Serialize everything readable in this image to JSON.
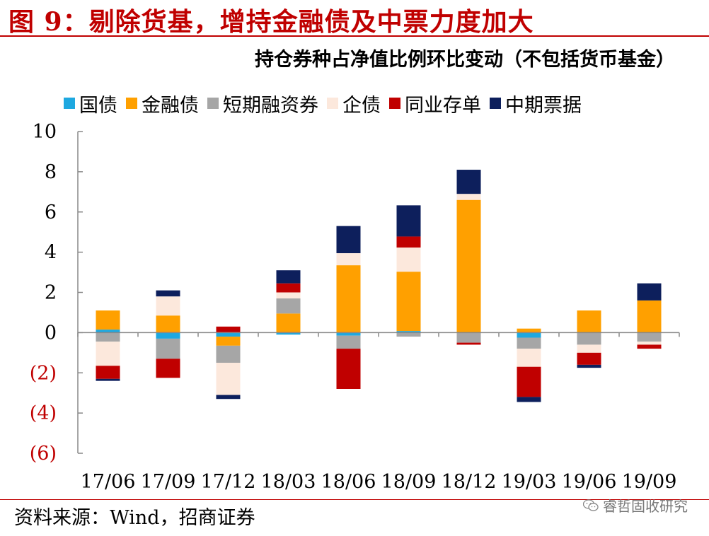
{
  "figure_title": "图 9：剔除货基，增持金融债及中票力度加大",
  "source": "资料来源：Wind，招商证券",
  "watermark": "睿哲固收研究",
  "watermark_icon": "wechat-icon",
  "chart_data": {
    "type": "bar",
    "stacked": true,
    "title": "持仓券种占净值比例环比变动（不包括货币基金）",
    "xlabel": "",
    "ylabel": "",
    "ylim": [
      -6,
      10
    ],
    "yticks": [
      "10",
      "8",
      "6",
      "4",
      "2",
      "0",
      "(2)",
      "(4)",
      "(6)"
    ],
    "ytick_values": [
      10,
      8,
      6,
      4,
      2,
      0,
      -2,
      -4,
      -6
    ],
    "negative_tick_color": "#c00000",
    "grid": false,
    "legend_position": "top",
    "categories": [
      "17/06",
      "17/09",
      "17/12",
      "18/03",
      "18/06",
      "18/09",
      "18/12",
      "19/03",
      "19/06",
      "19/09"
    ],
    "series": [
      {
        "name": "国债",
        "color": "#1ea8e0",
        "values": [
          0.15,
          -0.3,
          -0.2,
          -0.1,
          -0.15,
          0.08,
          0.0,
          -0.25,
          0.0,
          0.0
        ]
      },
      {
        "name": "金融债",
        "color": "#ffa000",
        "values": [
          0.95,
          0.85,
          -0.45,
          0.95,
          3.35,
          2.95,
          6.6,
          0.2,
          1.1,
          1.6
        ]
      },
      {
        "name": "短期融资券",
        "color": "#a6a6a6",
        "values": [
          -0.45,
          -1.0,
          -0.85,
          0.75,
          -0.65,
          -0.2,
          -0.5,
          -0.55,
          -0.6,
          -0.45
        ]
      },
      {
        "name": "企债",
        "color": "#fce8dc",
        "values": [
          -1.2,
          0.95,
          -1.6,
          0.3,
          0.6,
          1.2,
          0.3,
          -0.9,
          -0.4,
          -0.15
        ]
      },
      {
        "name": "同业存单",
        "color": "#c00000",
        "values": [
          -0.65,
          -0.95,
          0.3,
          0.45,
          -2.0,
          0.55,
          -0.1,
          -1.5,
          -0.6,
          -0.2
        ]
      },
      {
        "name": "中期票据",
        "color": "#0d1f5c",
        "values": [
          -0.1,
          0.3,
          -0.2,
          0.65,
          1.35,
          1.55,
          1.2,
          -0.25,
          -0.15,
          0.85
        ]
      }
    ]
  }
}
